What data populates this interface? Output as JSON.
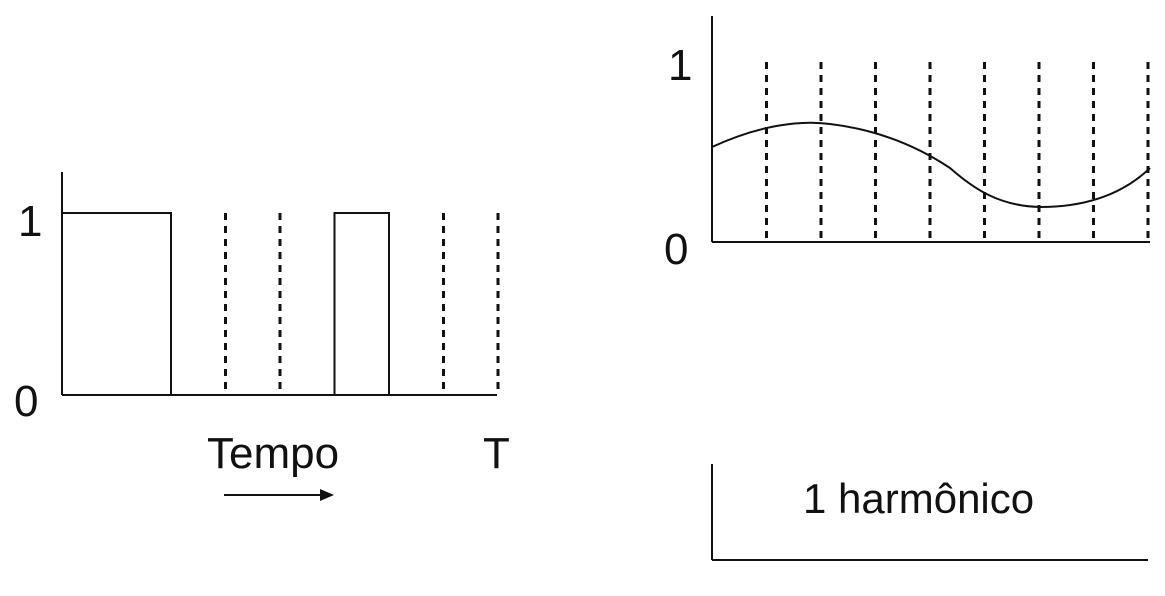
{
  "left_plot": {
    "y_tick_top": "1",
    "y_tick_bottom": "0",
    "x_label": "Tempo",
    "end_label": "T",
    "signal": [
      1,
      1,
      0,
      0,
      0,
      1,
      0,
      0
    ],
    "slot_count": 8
  },
  "right_plot": {
    "y_tick_top": "1",
    "y_tick_bottom": "0",
    "slot_count": 8,
    "caption": "1 harmônico"
  },
  "colors": {
    "ink": "#111111",
    "background": "#ffffff"
  }
}
